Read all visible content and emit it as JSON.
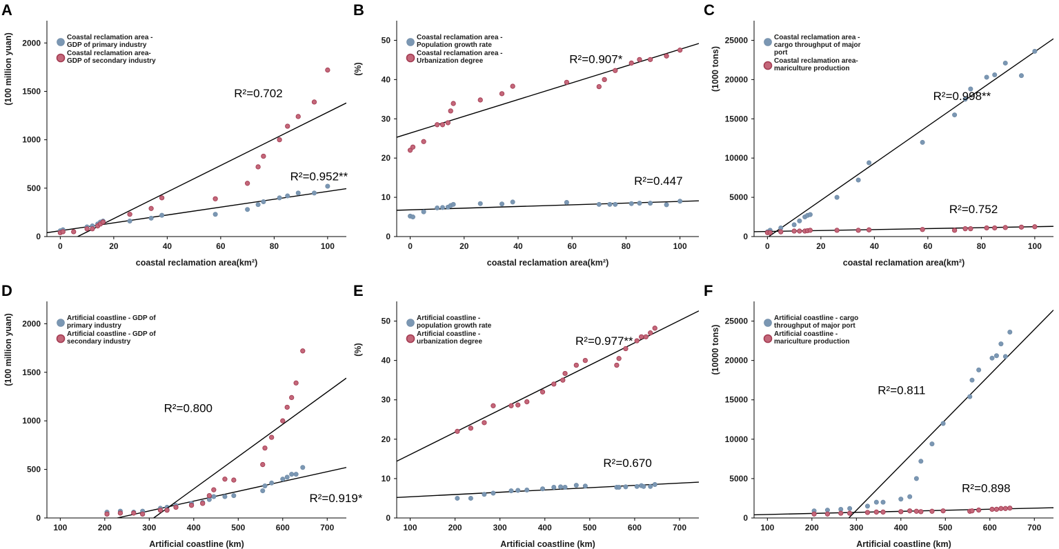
{
  "figure": {
    "colors": {
      "series1": "#7b97b3",
      "series1_stroke": "#6a86a2",
      "series2": "#c4677a",
      "series2_stroke": "#a33c52",
      "line": "#000000"
    }
  },
  "chart_data": [
    {
      "panel": "A",
      "type": "scatter",
      "xlabel": "coastal reclamation area(km²)",
      "ylabel": "(100 million yuan)",
      "xlim": [
        -5,
        107
      ],
      "ylim": [
        0,
        2230
      ],
      "xticks": [
        "0",
        "20",
        "40",
        "60",
        "80",
        "100"
      ],
      "xtick_values": [
        0,
        20,
        40,
        60,
        80,
        100
      ],
      "yticks": [
        "0",
        "500",
        "1000",
        "1500",
        "2000"
      ],
      "ytick_values": [
        0,
        500,
        1000,
        1500,
        2000
      ],
      "legend": [
        "Coastal reclamation area -\nGDP of primary industry",
        "Coastal reclamation area-\nGDP of secondary industry"
      ],
      "series": [
        {
          "name": "Coastal reclamation area - GDP of primary industry",
          "x": [
            0,
            1,
            10,
            12,
            14,
            15,
            16,
            26,
            34,
            38,
            58,
            70,
            74,
            76,
            82,
            85,
            89,
            95,
            100
          ],
          "y": [
            60,
            70,
            100,
            110,
            130,
            150,
            160,
            160,
            190,
            220,
            230,
            280,
            330,
            360,
            400,
            420,
            450,
            450,
            520
          ],
          "fit": [
            [
              -5,
              40
            ],
            [
              107,
              495
            ]
          ],
          "r2": "R²=0.952**",
          "r2_pos": [
            86,
            580
          ]
        },
        {
          "name": "Coastal reclamation area- GDP of secondary industry",
          "x": [
            0,
            1,
            5,
            10,
            12,
            14,
            15,
            16,
            26,
            34,
            38,
            58,
            70,
            74,
            76,
            82,
            85,
            89,
            95,
            100
          ],
          "y": [
            40,
            50,
            50,
            80,
            80,
            110,
            130,
            150,
            230,
            290,
            400,
            390,
            550,
            720,
            830,
            1000,
            1140,
            1240,
            1390,
            1720
          ],
          "fit": [
            [
              6.5,
              0
            ],
            [
              107,
              1380
            ]
          ],
          "r2": "R²=0.702",
          "r2_pos": [
            65,
            1440
          ]
        }
      ]
    },
    {
      "panel": "B",
      "type": "scatter",
      "xlabel": "coastal reclamation area(km²)",
      "ylabel": "(%)",
      "xlim": [
        -5,
        107
      ],
      "ylim": [
        0,
        55
      ],
      "xticks": [
        "0",
        "20",
        "40",
        "60",
        "80",
        "100"
      ],
      "xtick_values": [
        0,
        20,
        40,
        60,
        80,
        100
      ],
      "yticks": [
        "0",
        "10",
        "20",
        "30",
        "40",
        "50"
      ],
      "ytick_values": [
        0,
        10,
        20,
        30,
        40,
        50
      ],
      "legend": [
        "Coastal reclamation area -\nPopulation growth rate",
        "Coastal reclamation area -\nUrbanization degree"
      ],
      "series": [
        {
          "name": "Coastal reclamation area - Population growth rate",
          "x": [
            0,
            1,
            5,
            10,
            12,
            14,
            15,
            16,
            26,
            34,
            38,
            58,
            70,
            74,
            76,
            82,
            85,
            89,
            95,
            100
          ],
          "y": [
            5.2,
            5.0,
            6.3,
            7.3,
            7.4,
            7.5,
            7.9,
            8.2,
            8.4,
            8.3,
            8.8,
            8.7,
            8.2,
            8.2,
            8.2,
            8.4,
            8.5,
            8.5,
            8.1,
            9.0
          ],
          "fit": [
            [
              -5,
              6.7
            ],
            [
              107,
              9.1
            ]
          ],
          "r2": "R²=0.447",
          "r2_pos": [
            83,
            13.2
          ]
        },
        {
          "name": "Coastal reclamation area - Urbanization degree",
          "x": [
            0,
            1,
            5,
            10,
            12,
            14,
            15,
            16,
            26,
            34,
            38,
            58,
            70,
            72,
            76,
            82,
            85,
            89,
            95,
            100
          ],
          "y": [
            22.0,
            22.8,
            24.2,
            28.5,
            28.5,
            29.0,
            32.0,
            33.9,
            34.8,
            36.4,
            38.3,
            39.3,
            38.2,
            40.0,
            42.3,
            44.2,
            45.1,
            45.1,
            46.0,
            47.5
          ],
          "fit": [
            [
              -5,
              25.3
            ],
            [
              107,
              49.2
            ]
          ],
          "r2": "R²=0.907*",
          "r2_pos": [
            59,
            44.2
          ]
        }
      ]
    },
    {
      "panel": "C",
      "type": "scatter",
      "xlabel": "coastal reclamation area(km²)",
      "ylabel": "(1000 tons)",
      "xlim": [
        -5,
        107
      ],
      "ylim": [
        0,
        27500
      ],
      "xticks": [
        "0",
        "20",
        "40",
        "60",
        "80",
        "100"
      ],
      "xtick_values": [
        0,
        20,
        40,
        60,
        80,
        100
      ],
      "yticks": [
        "0",
        "5000",
        "10000",
        "15000",
        "20000",
        "25000"
      ],
      "ytick_values": [
        0,
        5000,
        10000,
        15000,
        20000,
        25000
      ],
      "legend": [
        "Coastal reclamation area -\ncargo throughput of major\nport",
        "Coastal reclamation area-\nmariculture production"
      ],
      "series": [
        {
          "name": "Coastal reclamation area - cargo throughput of major port",
          "x": [
            0,
            1,
            5,
            10,
            12,
            14,
            15,
            16,
            26,
            34,
            38,
            58,
            70,
            74,
            76,
            82,
            85,
            89,
            95,
            100
          ],
          "y": [
            600,
            800,
            1100,
            1500,
            2000,
            2500,
            2700,
            2800,
            5000,
            7200,
            9400,
            12000,
            15500,
            17500,
            18800,
            20300,
            20600,
            22100,
            20500,
            23600
          ],
          "fit": [
            [
              0.5,
              0
            ],
            [
              107,
              25200
            ]
          ],
          "r2": "R²=0.998**",
          "r2_pos": [
            62,
            17400
          ]
        },
        {
          "name": "Coastal reclamation area- mariculture production",
          "x": [
            0,
            1,
            5,
            10,
            12,
            14,
            15,
            16,
            26,
            34,
            38,
            58,
            70,
            74,
            76,
            82,
            85,
            89,
            95,
            100
          ],
          "y": [
            500,
            500,
            600,
            700,
            700,
            700,
            750,
            800,
            800,
            800,
            850,
            900,
            800,
            1000,
            1000,
            1100,
            1100,
            1150,
            1200,
            1250
          ],
          "fit": [
            [
              -5,
              620
            ],
            [
              107,
              1300
            ]
          ],
          "r2": "R²=0.752",
          "r2_pos": [
            68,
            3000
          ]
        }
      ]
    },
    {
      "panel": "D",
      "type": "scatter",
      "xlabel": "Artificial coastline (km)",
      "ylabel": "(100 million yuan)",
      "xlim": [
        70,
        743
      ],
      "ylim": [
        0,
        2230
      ],
      "xticks": [
        "100",
        "200",
        "300",
        "400",
        "500",
        "600",
        "700"
      ],
      "xtick_values": [
        100,
        200,
        300,
        400,
        500,
        600,
        700
      ],
      "yticks": [
        "0",
        "500",
        "1000",
        "1500",
        "2000"
      ],
      "ytick_values": [
        0,
        500,
        1000,
        1500,
        2000
      ],
      "legend": [
        "Artificial coastline  - GDP of\nprimary industry",
        "Artificial coastline - GDP of\nsecondary industry"
      ],
      "series": [
        {
          "name": "Artificial coastline - GDP of primary industry",
          "x": [
            205,
            235,
            265,
            285,
            325,
            340,
            360,
            395,
            420,
            435,
            445,
            470,
            490,
            555,
            560,
            575,
            600,
            610,
            620,
            630,
            645
          ],
          "y": [
            60,
            70,
            60,
            70,
            100,
            110,
            130,
            150,
            160,
            190,
            220,
            220,
            230,
            280,
            330,
            360,
            400,
            420,
            450,
            450,
            520
          ],
          "fit": [
            [
              228,
              0
            ],
            [
              743,
              520
            ]
          ],
          "r2": "R²=0.919*",
          "r2_pos": [
            660,
            165
          ]
        },
        {
          "name": "Artificial coastline - GDP of secondary industry",
          "x": [
            205,
            235,
            265,
            285,
            325,
            340,
            360,
            395,
            420,
            435,
            445,
            470,
            490,
            555,
            560,
            575,
            600,
            610,
            620,
            630,
            645
          ],
          "y": [
            40,
            50,
            50,
            40,
            80,
            80,
            110,
            130,
            150,
            230,
            290,
            400,
            390,
            550,
            720,
            830,
            1000,
            1140,
            1240,
            1390,
            1720
          ],
          "fit": [
            [
              310,
              0
            ],
            [
              743,
              1440
            ]
          ],
          "r2": "R²=0.800",
          "r2_pos": [
            333,
            1090
          ]
        }
      ]
    },
    {
      "panel": "E",
      "type": "scatter",
      "xlabel": "Artificial coastline (km)",
      "ylabel": "(%)",
      "xlim": [
        70,
        743
      ],
      "ylim": [
        0,
        55
      ],
      "xticks": [
        "100",
        "200",
        "300",
        "400",
        "500",
        "600",
        "700"
      ],
      "xtick_values": [
        100,
        200,
        300,
        400,
        500,
        600,
        700
      ],
      "yticks": [
        "0",
        "10",
        "20",
        "30",
        "40",
        "50"
      ],
      "ytick_values": [
        0,
        10,
        20,
        30,
        40,
        50
      ],
      "legend": [
        "Artificial coastline -\npopulation growth rate",
        "Artificial coastline -\nurbanization degree"
      ],
      "series": [
        {
          "name": "Artificial coastline - population growth rate",
          "x": [
            205,
            235,
            265,
            285,
            325,
            340,
            360,
            395,
            420,
            435,
            445,
            470,
            490,
            560,
            565,
            580,
            605,
            615,
            620,
            635,
            645
          ],
          "y": [
            5.0,
            5.0,
            6.0,
            6.3,
            6.9,
            7.0,
            7.1,
            7.4,
            7.8,
            7.9,
            7.8,
            8.3,
            8.1,
            7.8,
            7.8,
            7.9,
            8.0,
            8.2,
            8.0,
            8.0,
            8.5
          ],
          "fit": [
            [
              70,
              5.2
            ],
            [
              743,
              9.1
            ]
          ],
          "r2": "R²=0.670",
          "r2_pos": [
            530,
            13.0
          ]
        },
        {
          "name": "Artificial coastline - urbanization degree",
          "x": [
            205,
            235,
            265,
            285,
            325,
            340,
            360,
            395,
            420,
            440,
            445,
            470,
            490,
            560,
            565,
            580,
            605,
            615,
            625,
            635,
            645
          ],
          "y": [
            22.0,
            22.8,
            24.2,
            28.5,
            28.5,
            28.7,
            29.5,
            32.0,
            34.0,
            35.0,
            36.7,
            38.8,
            40.0,
            38.8,
            40.5,
            43.0,
            45.0,
            46.0,
            46.0,
            47.0,
            48.2
          ],
          "fit": [
            [
              70,
              14.4
            ],
            [
              743,
              52.6
            ]
          ],
          "r2": "R²=0.977**",
          "r2_pos": [
            468,
            44.0
          ]
        }
      ]
    },
    {
      "panel": "F",
      "type": "scatter",
      "xlabel": "Artificial coastline (km)",
      "ylabel": "(10000 tons)",
      "xlim": [
        70,
        743
      ],
      "ylim": [
        0,
        27500
      ],
      "xticks": [
        "100",
        "200",
        "300",
        "400",
        "500",
        "600",
        "700"
      ],
      "xtick_values": [
        100,
        200,
        300,
        400,
        500,
        600,
        700
      ],
      "yticks": [
        "0",
        "5000",
        "10000",
        "15000",
        "20000",
        "25000"
      ],
      "ytick_values": [
        0,
        5000,
        10000,
        15000,
        20000,
        25000
      ],
      "legend": [
        "Artificial coastline - cargo\nthroughput of major port",
        "Artificial coastline -\nmariculture production"
      ],
      "series": [
        {
          "name": "Artificial coastline - cargo throughput of major port",
          "x": [
            205,
            235,
            265,
            285,
            325,
            345,
            360,
            400,
            420,
            435,
            445,
            470,
            495,
            555,
            560,
            575,
            605,
            615,
            625,
            635,
            645
          ],
          "y": [
            900,
            1000,
            1100,
            1200,
            1500,
            2000,
            2000,
            2400,
            2700,
            5000,
            7200,
            9400,
            12000,
            15400,
            17500,
            18800,
            20300,
            20600,
            22100,
            20500,
            23600
          ],
          "fit": [
            [
              283,
              0
            ],
            [
              743,
              26400
            ]
          ],
          "r2": "R²=0.811",
          "r2_pos": [
            348,
            15700
          ]
        },
        {
          "name": "Artificial coastline - mariculture production",
          "x": [
            205,
            235,
            265,
            285,
            325,
            345,
            360,
            400,
            420,
            435,
            445,
            470,
            495,
            555,
            560,
            575,
            605,
            615,
            625,
            635,
            645
          ],
          "y": [
            500,
            500,
            600,
            600,
            700,
            750,
            750,
            800,
            900,
            850,
            800,
            850,
            900,
            850,
            900,
            1000,
            1100,
            1100,
            1200,
            1200,
            1250
          ],
          "fit": [
            [
              70,
              400
            ],
            [
              743,
              1300
            ]
          ],
          "r2": "R²=0.898",
          "r2_pos": [
            537,
            3300
          ]
        }
      ]
    }
  ]
}
